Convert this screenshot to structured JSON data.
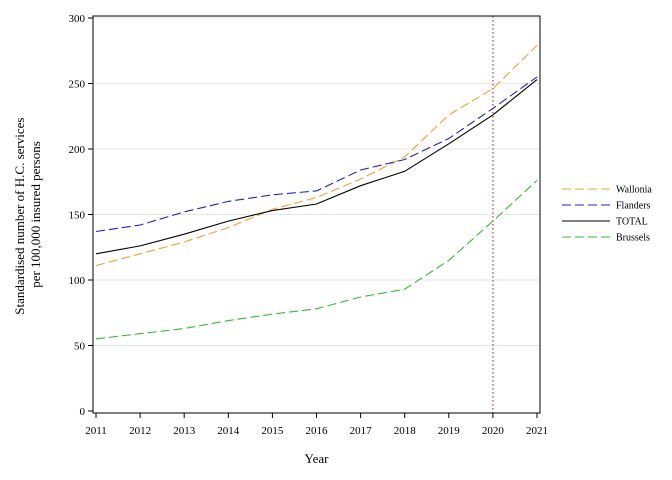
{
  "chart_data": {
    "type": "line",
    "title": "",
    "xlabel": "Year",
    "ylabel_lines": [
      "Standardised number of H.C. services",
      "per 100,000 insured persons"
    ],
    "x": [
      2011,
      2012,
      2013,
      2014,
      2015,
      2016,
      2017,
      2018,
      2019,
      2020,
      2021
    ],
    "xlim": [
      2011,
      2021
    ],
    "ylim": [
      0,
      300
    ],
    "yticks": [
      0,
      50,
      100,
      150,
      200,
      250,
      300
    ],
    "grid": "horizontal",
    "legend_position": "right",
    "reference_line": {
      "x": 2020,
      "color": "#b03060",
      "style": "dotted"
    },
    "series": [
      {
        "name": "Wallonia",
        "color": "#f0a030",
        "dash": "dashed",
        "values": [
          111,
          120,
          129,
          140,
          154,
          163,
          177,
          194,
          226,
          246,
          279
        ]
      },
      {
        "name": "Flanders",
        "color": "#2222cc",
        "dash": "dashed",
        "values": [
          137,
          142,
          152,
          160,
          165,
          168,
          184,
          192,
          208,
          231,
          255
        ]
      },
      {
        "name": "TOTAL",
        "color": "#000000",
        "dash": "solid",
        "values": [
          120,
          126,
          135,
          145,
          153,
          158,
          172,
          183,
          204,
          226,
          253
        ]
      },
      {
        "name": "Brussels",
        "color": "#33bb33",
        "dash": "dashed",
        "values": [
          55,
          59,
          63,
          69,
          74,
          78,
          87,
          93,
          115,
          145,
          176
        ]
      }
    ]
  }
}
